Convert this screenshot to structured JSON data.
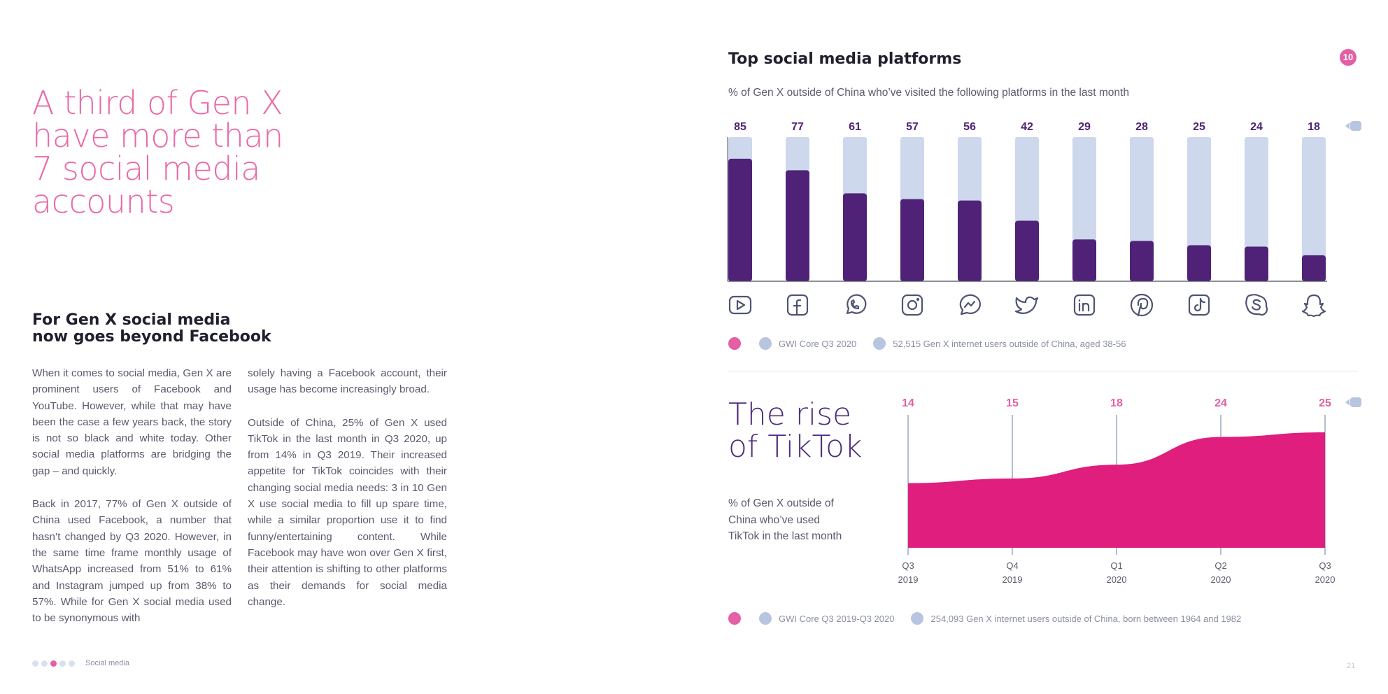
{
  "left": {
    "headline_lines": [
      "A third of Gen X",
      "have more than",
      "7 social media",
      "accounts"
    ],
    "subhead_lines": [
      "For Gen X social media",
      "now goes beyond Facebook"
    ],
    "col1": [
      "When it comes to social media, Gen X are prominent users of Facebook and YouTube. However, while that may have been the case a few years back, the story is not so black and white today. Other social media platforms are bridging the gap – and quickly.",
      "Back in 2017, 77% of Gen X outside of China used Facebook, a number that hasn’t changed by Q3 2020. However, in the same time frame monthly usage of WhatsApp increased from 51% to 61% and Instagram jumped up from 38% to 57%. While for Gen X social media used to be synonymous with"
    ],
    "col2": [
      "solely having a Facebook account, their usage has become increasingly broad.",
      "Outside of China, 25% of Gen X used TikTok in the last month in Q3 2020, up from 14% in Q3 2019. Their increased appetite for TikTok coincides with their changing social media needs: 3 in 10 Gen X use social media to fill up spare time, while a similar proportion use it to find funny/entertaining content. While Facebook may have won over Gen X first, their attention is shifting to other platforms as their demands for social media change."
    ],
    "footer_label": "Social media"
  },
  "right": {
    "page_badge": "10",
    "page_number": "21",
    "chart1_title": "Top social media platforms",
    "chart1_subtitle": "% of Gen X outside of China who’ve visited the following platforms in the last month",
    "chart1_source": "GWI Core Q3 2020",
    "chart1_base": "52,515 Gen X internet users outside of China, aged 38-56",
    "chart2_title_lines": [
      "The rise",
      "of TikTok"
    ],
    "chart2_subtitle_lines": [
      "% of Gen X outside of",
      "China who’ve used",
      "TikTok in the last month"
    ],
    "chart2_source": "GWI Core Q3 2019-Q3 2020",
    "chart2_base": "254,093 Gen X internet users outside of China, born between 1964 and 1982"
  },
  "colors": {
    "pink": "#e45fa4",
    "purple": "#4f2277",
    "light_bar": "#cdd8ec",
    "magenta_area": "#df1e7d"
  },
  "chart_data": [
    {
      "type": "bar",
      "categories": [
        "youtube-icon",
        "facebook-icon",
        "whatsapp-icon",
        "instagram-icon",
        "messenger-icon",
        "twitter-icon",
        "linkedin-icon",
        "pinterest-icon",
        "tiktok-icon",
        "skype-icon",
        "snapchat-icon"
      ],
      "values": [
        85,
        77,
        61,
        57,
        56,
        42,
        29,
        28,
        25,
        24,
        18
      ],
      "ylim": [
        0,
        100
      ],
      "title": "Top social media platforms",
      "subtitle": "% of Gen X outside of China who’ve visited the following platforms in the last month"
    },
    {
      "type": "area",
      "categories": [
        "Q3 2019",
        "Q4 2019",
        "Q1 2020",
        "Q2 2020",
        "Q3 2020"
      ],
      "category_lines": [
        [
          "Q3",
          "2019"
        ],
        [
          "Q4",
          "2019"
        ],
        [
          "Q1",
          "2020"
        ],
        [
          "Q2",
          "2020"
        ],
        [
          "Q3",
          "2020"
        ]
      ],
      "values": [
        14,
        15,
        18,
        24,
        25
      ],
      "title": "The rise of TikTok"
    }
  ]
}
